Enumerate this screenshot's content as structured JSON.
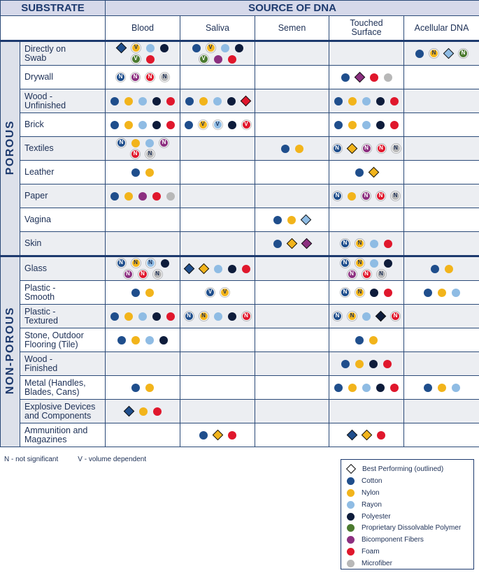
{
  "header": {
    "substrate": "SUBSTRATE",
    "source": "SOURCE OF DNA",
    "columns": [
      "Blood",
      "Saliva",
      "Semen",
      "Touched\nSurface",
      "Acellular DNA"
    ]
  },
  "groups": [
    {
      "label": "POROUS",
      "rows": [
        {
          "substrate": "Directly on\nSwab",
          "cells": [
            [
              {
                "swab": 0,
                "best": true
              },
              {
                "swab": 1,
                "label": "V"
              },
              {
                "swab": 2
              },
              {
                "swab": 3
              },
              {
                "swab": 4,
                "label": "V"
              },
              {
                "swab": 6
              }
            ],
            [
              {
                "swab": 0
              },
              {
                "swab": 1,
                "label": "V"
              },
              {
                "swab": 2
              },
              {
                "swab": 3
              },
              {
                "swab": 4,
                "label": "V"
              },
              {
                "swab": 5
              },
              {
                "swab": 6
              }
            ],
            [],
            [],
            [
              {
                "swab": 0
              },
              {
                "swab": 1,
                "label": "N"
              },
              {
                "swab": 2,
                "best": true
              },
              {
                "swab": 4,
                "label": "N"
              }
            ]
          ]
        },
        {
          "substrate": "Drywall",
          "cells": [
            [
              {
                "swab": 0,
                "label": "N"
              },
              {
                "swab": 5,
                "label": "N"
              },
              {
                "swab": 6,
                "label": "N"
              },
              {
                "swab": 7,
                "label": "N"
              }
            ],
            [],
            [],
            [
              {
                "swab": 0
              },
              {
                "swab": 5,
                "best": true
              },
              {
                "swab": 6
              },
              {
                "swab": 7
              }
            ],
            []
          ]
        },
        {
          "substrate": "Wood -\nUnfinished",
          "cells": [
            [
              {
                "swab": 0
              },
              {
                "swab": 1
              },
              {
                "swab": 2
              },
              {
                "swab": 3
              },
              {
                "swab": 6
              }
            ],
            [
              {
                "swab": 0
              },
              {
                "swab": 1
              },
              {
                "swab": 2
              },
              {
                "swab": 3
              },
              {
                "swab": 6,
                "best": true
              }
            ],
            [],
            [
              {
                "swab": 0
              },
              {
                "swab": 1
              },
              {
                "swab": 2
              },
              {
                "swab": 3
              },
              {
                "swab": 6
              }
            ],
            []
          ]
        },
        {
          "substrate": "Brick",
          "cells": [
            [
              {
                "swab": 0
              },
              {
                "swab": 1
              },
              {
                "swab": 2
              },
              {
                "swab": 3
              },
              {
                "swab": 6
              }
            ],
            [
              {
                "swab": 0
              },
              {
                "swab": 1,
                "label": "V"
              },
              {
                "swab": 2,
                "label": "V"
              },
              {
                "swab": 3
              },
              {
                "swab": 6,
                "label": "V"
              }
            ],
            [],
            [
              {
                "swab": 0
              },
              {
                "swab": 1
              },
              {
                "swab": 2
              },
              {
                "swab": 3
              },
              {
                "swab": 6
              }
            ],
            []
          ]
        },
        {
          "substrate": "Textiles",
          "cells": [
            [
              {
                "swab": 0,
                "label": "N"
              },
              {
                "swab": 1
              },
              {
                "swab": 2
              },
              {
                "swab": 5,
                "label": "N"
              },
              {
                "swab": 6,
                "label": "N"
              },
              {
                "swab": 7,
                "label": "N"
              }
            ],
            [],
            [
              {
                "swab": 0
              },
              {
                "swab": 1
              }
            ],
            [
              {
                "swab": 0,
                "label": "N"
              },
              {
                "swab": 1,
                "best": true
              },
              {
                "swab": 5,
                "label": "N"
              },
              {
                "swab": 6,
                "label": "N"
              },
              {
                "swab": 7,
                "label": "N"
              }
            ],
            []
          ]
        },
        {
          "substrate": "Leather",
          "cells": [
            [
              {
                "swab": 0
              },
              {
                "swab": 1
              }
            ],
            [],
            [],
            [
              {
                "swab": 0
              },
              {
                "swab": 1,
                "best": true
              }
            ],
            []
          ]
        },
        {
          "substrate": "Paper",
          "cells": [
            [
              {
                "swab": 0
              },
              {
                "swab": 1
              },
              {
                "swab": 5
              },
              {
                "swab": 6
              },
              {
                "swab": 7
              }
            ],
            [],
            [],
            [
              {
                "swab": 0,
                "label": "N"
              },
              {
                "swab": 1
              },
              {
                "swab": 5,
                "label": "N"
              },
              {
                "swab": 6,
                "label": "N"
              },
              {
                "swab": 7,
                "label": "N"
              }
            ],
            []
          ]
        },
        {
          "substrate": "Vagina",
          "cells": [
            [],
            [],
            [
              {
                "swab": 0
              },
              {
                "swab": 1
              },
              {
                "swab": 2,
                "best": true
              }
            ],
            [],
            []
          ]
        },
        {
          "substrate": "Skin",
          "cells": [
            [],
            [],
            [
              {
                "swab": 0
              },
              {
                "swab": 1,
                "best": true
              },
              {
                "swab": 5,
                "best": true
              }
            ],
            [
              {
                "swab": 0,
                "label": "N"
              },
              {
                "swab": 1,
                "label": "N"
              },
              {
                "swab": 2
              },
              {
                "swab": 6
              }
            ],
            []
          ]
        }
      ]
    },
    {
      "label": "NON-POROUS",
      "rows": [
        {
          "substrate": "Glass",
          "cells": [
            [
              {
                "swab": 0,
                "label": "N"
              },
              {
                "swab": 1,
                "label": "N"
              },
              {
                "swab": 2,
                "label": "N"
              },
              {
                "swab": 3
              },
              {
                "swab": 5,
                "label": "N"
              },
              {
                "swab": 6,
                "label": "N"
              },
              {
                "swab": 7,
                "label": "N"
              }
            ],
            [
              {
                "swab": 0,
                "best": true
              },
              {
                "swab": 1,
                "best": true
              },
              {
                "swab": 2
              },
              {
                "swab": 3
              },
              {
                "swab": 6
              }
            ],
            [],
            [
              {
                "swab": 0,
                "label": "N"
              },
              {
                "swab": 1,
                "label": "N"
              },
              {
                "swab": 2
              },
              {
                "swab": 3
              },
              {
                "swab": 5,
                "label": "N"
              },
              {
                "swab": 6,
                "label": "N"
              },
              {
                "swab": 7,
                "label": "N"
              }
            ],
            [
              {
                "swab": 0
              },
              {
                "swab": 1
              }
            ]
          ]
        },
        {
          "substrate": "Plastic -\nSmooth",
          "cells": [
            [
              {
                "swab": 0
              },
              {
                "swab": 1
              }
            ],
            [
              {
                "swab": 0,
                "label": "V"
              },
              {
                "swab": 1,
                "label": "V"
              }
            ],
            [],
            [
              {
                "swab": 0,
                "label": "N"
              },
              {
                "swab": 1,
                "label": "N"
              },
              {
                "swab": 3
              },
              {
                "swab": 6
              }
            ],
            [
              {
                "swab": 0
              },
              {
                "swab": 1
              },
              {
                "swab": 2
              }
            ]
          ]
        },
        {
          "substrate": "Plastic -\nTextured",
          "cells": [
            [
              {
                "swab": 0
              },
              {
                "swab": 1
              },
              {
                "swab": 2
              },
              {
                "swab": 3
              },
              {
                "swab": 6
              }
            ],
            [
              {
                "swab": 0,
                "label": "N"
              },
              {
                "swab": 1,
                "label": "N"
              },
              {
                "swab": 2
              },
              {
                "swab": 3
              },
              {
                "swab": 6,
                "label": "N"
              }
            ],
            [],
            [
              {
                "swab": 0,
                "label": "N"
              },
              {
                "swab": 1,
                "label": "N"
              },
              {
                "swab": 2
              },
              {
                "swab": 3,
                "best": true
              },
              {
                "swab": 6,
                "label": "N"
              }
            ],
            []
          ]
        },
        {
          "substrate": "Stone, Outdoor\nFlooring (Tile)",
          "cells": [
            [
              {
                "swab": 0
              },
              {
                "swab": 1
              },
              {
                "swab": 2
              },
              {
                "swab": 3
              }
            ],
            [],
            [],
            [
              {
                "swab": 0
              },
              {
                "swab": 1
              }
            ],
            []
          ]
        },
        {
          "substrate": "Wood -\nFinished",
          "cells": [
            [],
            [],
            [],
            [
              {
                "swab": 0
              },
              {
                "swab": 1
              },
              {
                "swab": 3
              },
              {
                "swab": 6
              }
            ],
            []
          ]
        },
        {
          "substrate": "Metal (Handles,\nBlades, Cans)",
          "cells": [
            [
              {
                "swab": 0
              },
              {
                "swab": 1
              }
            ],
            [],
            [],
            [
              {
                "swab": 0
              },
              {
                "swab": 1
              },
              {
                "swab": 2
              },
              {
                "swab": 3
              },
              {
                "swab": 6
              }
            ],
            [
              {
                "swab": 0
              },
              {
                "swab": 1
              },
              {
                "swab": 2
              }
            ]
          ]
        },
        {
          "substrate": "Explosive Devices\nand Components",
          "cells": [
            [
              {
                "swab": 0,
                "best": true
              },
              {
                "swab": 1
              },
              {
                "swab": 6
              }
            ],
            [],
            [],
            [],
            []
          ]
        },
        {
          "substrate": "Ammunition and\nMagazines",
          "cells": [
            [],
            [
              {
                "swab": 0
              },
              {
                "swab": 1,
                "best": true
              },
              {
                "swab": 6
              }
            ],
            [],
            [
              {
                "swab": 0,
                "best": true
              },
              {
                "swab": 1,
                "best": true
              },
              {
                "swab": 6
              }
            ],
            []
          ]
        }
      ]
    }
  ],
  "notes": [
    "N - not significant",
    "V - volume dependent"
  ],
  "legend": {
    "best": "Best Performing (outlined)",
    "swabs": [
      {
        "name": "Cotton",
        "color": "#1f4e8c"
      },
      {
        "name": "Nylon",
        "color": "#f2b41b"
      },
      {
        "name": "Rayon",
        "color": "#8fbce4"
      },
      {
        "name": "Polyester",
        "color": "#0e1c3b"
      },
      {
        "name": "Proprietary Dissolvable Polymer",
        "color": "#4b7a2f"
      },
      {
        "name": "Bicomponent Fibers",
        "color": "#8c2f80"
      },
      {
        "name": "Foam",
        "color": "#e0172c"
      },
      {
        "name": "Microfiber",
        "color": "#b8b8b8"
      }
    ]
  }
}
